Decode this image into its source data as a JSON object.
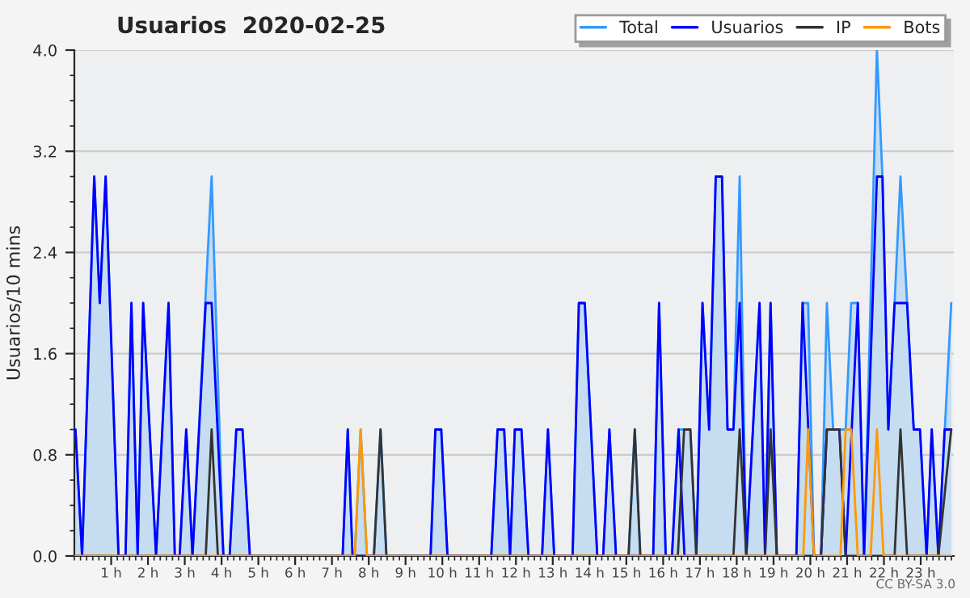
{
  "chart_data": {
    "type": "line",
    "title": "Usuarios  2020-02-25",
    "ylabel": "Usuarios/10 mins",
    "xlim": [
      0,
      23.9
    ],
    "ylim": [
      0,
      4
    ],
    "xticks": [
      {
        "value": 1,
        "label": "1 h"
      },
      {
        "value": 2,
        "label": "2 h"
      },
      {
        "value": 3,
        "label": "3 h"
      },
      {
        "value": 4,
        "label": "4 h"
      },
      {
        "value": 5,
        "label": "5 h"
      },
      {
        "value": 6,
        "label": "6 h"
      },
      {
        "value": 7,
        "label": "7 h"
      },
      {
        "value": 8,
        "label": "8 h"
      },
      {
        "value": 9,
        "label": "9 h"
      },
      {
        "value": 10,
        "label": "10 h"
      },
      {
        "value": 11,
        "label": "11 h"
      },
      {
        "value": 12,
        "label": "12 h"
      },
      {
        "value": 13,
        "label": "13 h"
      },
      {
        "value": 14,
        "label": "14 h"
      },
      {
        "value": 15,
        "label": "15 h"
      },
      {
        "value": 16,
        "label": "16 h"
      },
      {
        "value": 17,
        "label": "17 h"
      },
      {
        "value": 18,
        "label": "18 h"
      },
      {
        "value": 19,
        "label": "19 h"
      },
      {
        "value": 20,
        "label": "20 h"
      },
      {
        "value": 21,
        "label": "21 h"
      },
      {
        "value": 22,
        "label": "22 h"
      },
      {
        "value": 23,
        "label": "23 h"
      }
    ],
    "yticks": [
      {
        "value": 0,
        "label": "0.0"
      },
      {
        "value": 0.8,
        "label": "0.8"
      },
      {
        "value": 1.6,
        "label": "1.6"
      },
      {
        "value": 2.4,
        "label": "2.4"
      },
      {
        "value": 3.2,
        "label": "3.2"
      },
      {
        "value": 4,
        "label": "4.0"
      }
    ],
    "grid": "y",
    "legend": "top right",
    "marker": "none",
    "line_style": "solid",
    "annotations": [
      "CC BY-SA 3.0"
    ],
    "series": [
      {
        "name": "Total",
        "color": "#3399ff",
        "type": "area",
        "x": [
          0.03,
          0.21,
          0.54,
          0.69,
          0.85,
          1.2,
          1.39,
          1.55,
          1.72,
          1.87,
          2.22,
          2.56,
          2.73,
          2.86,
          3.04,
          3.21,
          3.73,
          4.05,
          4.22,
          4.4,
          4.57,
          4.77,
          7.29,
          7.43,
          7.56,
          7.62,
          7.78,
          7.95,
          8.14,
          8.32,
          8.48,
          9.68,
          9.81,
          9.97,
          10.14,
          11.33,
          11.5,
          11.68,
          11.84,
          11.97,
          12.15,
          12.34,
          12.71,
          12.87,
          13.04,
          13.54,
          13.71,
          13.87,
          14.21,
          14.37,
          14.54,
          14.72,
          15.06,
          15.23,
          15.38,
          15.73,
          15.89,
          16.07,
          16.24,
          16.42,
          16.57,
          16.74,
          16.9,
          17.07,
          17.25,
          17.43,
          17.6,
          17.75,
          17.91,
          18.08,
          18.26,
          18.62,
          18.77,
          18.92,
          19.09,
          19.62,
          19.79,
          19.94,
          20.1,
          20.29,
          20.45,
          20.62,
          20.79,
          20.96,
          21.11,
          21.29,
          21.46,
          21.81,
          21.96,
          22.12,
          22.29,
          22.45,
          22.63,
          22.81,
          22.98,
          23.16,
          23.3,
          23.48,
          23.83
        ],
        "values": [
          1,
          0,
          3,
          2,
          3,
          0,
          0,
          2,
          0,
          2,
          0,
          2,
          0,
          0,
          1,
          0,
          3,
          0,
          0,
          1,
          1,
          0,
          0,
          1,
          0,
          0,
          1,
          0,
          0,
          1,
          0,
          0,
          1,
          1,
          0,
          0,
          1,
          1,
          0,
          1,
          1,
          0,
          0,
          1,
          0,
          0,
          2,
          2,
          0,
          0,
          1,
          0,
          0,
          1,
          0,
          0,
          2,
          0,
          0,
          1,
          1,
          1,
          0,
          2,
          1,
          3,
          3,
          1,
          1,
          3,
          0,
          2,
          0,
          2,
          0,
          0,
          2,
          2,
          0,
          0,
          2,
          1,
          1,
          1,
          2,
          2,
          0,
          4,
          3,
          1,
          2,
          3,
          2,
          1,
          1,
          0,
          1,
          0,
          2
        ]
      },
      {
        "name": "Usuarios",
        "color": "#0000ff",
        "x": [
          0.03,
          0.21,
          0.54,
          0.69,
          0.85,
          1.2,
          1.39,
          1.55,
          1.72,
          1.87,
          2.22,
          2.56,
          2.73,
          2.86,
          3.04,
          3.21,
          3.57,
          3.73,
          4.05,
          4.22,
          4.4,
          4.57,
          4.77,
          7.29,
          7.43,
          7.56,
          9.68,
          9.81,
          9.97,
          10.14,
          11.33,
          11.5,
          11.68,
          11.84,
          11.97,
          12.15,
          12.34,
          12.71,
          12.87,
          13.04,
          13.54,
          13.71,
          13.87,
          14.21,
          14.37,
          14.54,
          14.72,
          15.73,
          15.89,
          16.07,
          16.24,
          16.42,
          16.58,
          16.9,
          17.07,
          17.25,
          17.43,
          17.6,
          17.75,
          17.91,
          18.08,
          18.26,
          18.62,
          18.77,
          18.92,
          19.09,
          19.62,
          19.79,
          20.1,
          20.29,
          20.45,
          20.79,
          20.96,
          21.29,
          21.46,
          21.81,
          21.96,
          22.12,
          22.29,
          22.63,
          22.81,
          22.98,
          23.16,
          23.3,
          23.48,
          23.65,
          23.83
        ],
        "values": [
          1,
          0,
          3,
          2,
          3,
          0,
          0,
          2,
          0,
          2,
          0,
          2,
          0,
          0,
          1,
          0,
          2,
          2,
          0,
          0,
          1,
          1,
          0,
          0,
          1,
          0,
          0,
          1,
          1,
          0,
          0,
          1,
          1,
          0,
          1,
          1,
          0,
          0,
          1,
          0,
          0,
          2,
          2,
          0,
          0,
          1,
          0,
          0,
          2,
          0,
          0,
          1,
          0,
          0,
          2,
          1,
          3,
          3,
          1,
          1,
          2,
          0,
          2,
          0,
          2,
          0,
          0,
          2,
          0,
          0,
          1,
          1,
          0,
          2,
          0,
          3,
          3,
          1,
          2,
          2,
          1,
          1,
          0,
          1,
          0,
          1,
          1
        ]
      },
      {
        "name": "IP",
        "color": "#333333",
        "x": [
          0.03,
          3.57,
          3.73,
          3.9,
          8.14,
          8.32,
          8.48,
          15.06,
          15.23,
          15.38,
          16.4,
          16.57,
          16.74,
          16.9,
          17.91,
          18.08,
          18.26,
          18.77,
          18.92,
          19.09,
          20.29,
          20.45,
          20.79,
          20.96,
          22.29,
          22.45,
          22.63,
          23.48,
          23.83
        ],
        "values": [
          0,
          0,
          1,
          0,
          0,
          1,
          0,
          0,
          1,
          0,
          0,
          1,
          1,
          0,
          0,
          1,
          0,
          0,
          1,
          0,
          0,
          1,
          1,
          0,
          0,
          1,
          0,
          0,
          1
        ]
      },
      {
        "name": "Bots",
        "color": "#ff9900",
        "x": [
          0.03,
          7.62,
          7.78,
          7.95,
          19.81,
          19.94,
          20.1,
          20.82,
          20.96,
          21.11,
          21.29,
          21.64,
          21.81,
          21.99,
          23.83
        ],
        "values": [
          0,
          0,
          1,
          0,
          0,
          1,
          0,
          0,
          1,
          1,
          0,
          0,
          1,
          0,
          0
        ]
      }
    ]
  }
}
